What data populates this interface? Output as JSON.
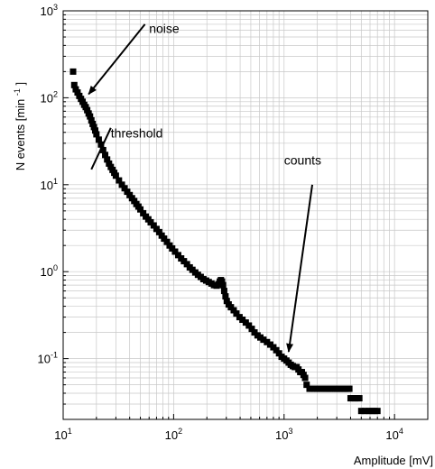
{
  "chart_data": {
    "type": "scatter",
    "x_scale": "log",
    "y_scale": "log",
    "xlim": [
      10,
      20000
    ],
    "ylim": [
      0.02,
      1000
    ],
    "grid": true,
    "xlabel": "Amplitude [mV]",
    "ylabel_main": "N events [min",
    "ylabel_sup": "-1",
    "ylabel_close": "]",
    "x_ticks": [
      {
        "value": 10,
        "base": "10",
        "exp": "1"
      },
      {
        "value": 100,
        "base": "10",
        "exp": "2"
      },
      {
        "value": 1000,
        "base": "10",
        "exp": "3"
      },
      {
        "value": 10000,
        "base": "10",
        "exp": "4"
      }
    ],
    "y_ticks": [
      {
        "value": 0.1,
        "base": "10",
        "exp": "-1"
      },
      {
        "value": 1,
        "base": "10",
        "exp": "0"
      },
      {
        "value": 10,
        "base": "10",
        "exp": "1"
      },
      {
        "value": 100,
        "base": "10",
        "exp": "2"
      },
      {
        "value": 1000,
        "base": "10",
        "exp": "3"
      }
    ],
    "annotations": [
      {
        "text": "noise",
        "text_x": 60,
        "text_y": 560,
        "from": [
          55,
          700
        ],
        "to": [
          17,
          110
        ]
      },
      {
        "text": "threshold",
        "text_x": 27,
        "text_y": 35,
        "from": [
          27,
          45
        ],
        "to": [
          18,
          15
        ]
      },
      {
        "text": "counts",
        "text_x": 1000,
        "text_y": 17,
        "from": [
          1800,
          10
        ],
        "to": [
          1100,
          0.12
        ]
      }
    ],
    "series": [
      {
        "points": [
          [
            12.3,
            200
          ],
          [
            12.6,
            140
          ],
          [
            13.0,
            125
          ],
          [
            13.5,
            115
          ],
          [
            14.0,
            105
          ],
          [
            14.5,
            97
          ],
          [
            15.0,
            90
          ],
          [
            15.5,
            83
          ],
          [
            16.0,
            78
          ],
          [
            16.5,
            72
          ],
          [
            17.0,
            66
          ],
          [
            17.5,
            61
          ],
          [
            18.0,
            55
          ],
          [
            18.5,
            50
          ],
          [
            19.0,
            46
          ],
          [
            19.5,
            42
          ],
          [
            20.0,
            38
          ],
          [
            21.0,
            33
          ],
          [
            22.0,
            29
          ],
          [
            23.0,
            25
          ],
          [
            24.0,
            22
          ],
          [
            25.0,
            19.5
          ],
          [
            26.0,
            17.5
          ],
          [
            27.0,
            16
          ],
          [
            28.0,
            14.8
          ],
          [
            29.0,
            13.7
          ],
          [
            30.0,
            12.7
          ],
          [
            32.0,
            11.2
          ],
          [
            34.0,
            10.0
          ],
          [
            36.0,
            9.1
          ],
          [
            38.0,
            8.3
          ],
          [
            40.0,
            7.6
          ],
          [
            42.0,
            7.0
          ],
          [
            44.0,
            6.5
          ],
          [
            46.0,
            6.0
          ],
          [
            48.0,
            5.6
          ],
          [
            50.0,
            5.2
          ],
          [
            53.0,
            4.7
          ],
          [
            56.0,
            4.3
          ],
          [
            59.0,
            4.0
          ],
          [
            62.0,
            3.7
          ],
          [
            66.0,
            3.4
          ],
          [
            70.0,
            3.1
          ],
          [
            74.0,
            2.85
          ],
          [
            78.0,
            2.6
          ],
          [
            82.0,
            2.4
          ],
          [
            87.0,
            2.2
          ],
          [
            92.0,
            2.0
          ],
          [
            97.0,
            1.85
          ],
          [
            103.0,
            1.7
          ],
          [
            110.0,
            1.55
          ],
          [
            117.0,
            1.42
          ],
          [
            124.0,
            1.32
          ],
          [
            132.0,
            1.22
          ],
          [
            140.0,
            1.12
          ],
          [
            148.0,
            1.05
          ],
          [
            157.0,
            0.98
          ],
          [
            166.0,
            0.92
          ],
          [
            176.0,
            0.87
          ],
          [
            186.0,
            0.82
          ],
          [
            197.0,
            0.79
          ],
          [
            208.0,
            0.76
          ],
          [
            220.0,
            0.73
          ],
          [
            232.0,
            0.7
          ],
          [
            245.0,
            0.69
          ],
          [
            255.0,
            0.72
          ],
          [
            262.0,
            0.77
          ],
          [
            268.0,
            0.8
          ],
          [
            274.0,
            0.77
          ],
          [
            280.0,
            0.7
          ],
          [
            287.0,
            0.6
          ],
          [
            295.0,
            0.52
          ],
          [
            303.0,
            0.46
          ],
          [
            315.0,
            0.42
          ],
          [
            330.0,
            0.39
          ],
          [
            350.0,
            0.36
          ],
          [
            370.0,
            0.33
          ],
          [
            395.0,
            0.3
          ],
          [
            420.0,
            0.28
          ],
          [
            450.0,
            0.26
          ],
          [
            480.0,
            0.24
          ],
          [
            510.0,
            0.22
          ],
          [
            540.0,
            0.2
          ],
          [
            575.0,
            0.185
          ],
          [
            610.0,
            0.175
          ],
          [
            650.0,
            0.165
          ],
          [
            700.0,
            0.155
          ],
          [
            750.0,
            0.145
          ],
          [
            800.0,
            0.135
          ],
          [
            850.0,
            0.125
          ],
          [
            900.0,
            0.115
          ],
          [
            950.0,
            0.105
          ],
          [
            1000.0,
            0.1
          ],
          [
            1050.0,
            0.095
          ],
          [
            1100.0,
            0.09
          ],
          [
            1150.0,
            0.085
          ],
          [
            1200.0,
            0.082
          ],
          [
            1250.0,
            0.08
          ],
          [
            1300.0,
            0.08
          ],
          [
            1350.0,
            0.075
          ],
          [
            1400.0,
            0.07
          ],
          [
            1450.0,
            0.07
          ],
          [
            1500.0,
            0.065
          ],
          [
            1550.0,
            0.06
          ],
          [
            1600.0,
            0.05
          ],
          [
            1700.0,
            0.045
          ],
          [
            1800.0,
            0.045
          ],
          [
            1900.0,
            0.045
          ],
          [
            2000.0,
            0.045
          ],
          [
            2100.0,
            0.045
          ],
          [
            2200.0,
            0.045
          ],
          [
            2300.0,
            0.045
          ],
          [
            2400.0,
            0.045
          ],
          [
            2500.0,
            0.045
          ],
          [
            2600.0,
            0.045
          ],
          [
            2700.0,
            0.045
          ],
          [
            2800.0,
            0.045
          ],
          [
            2900.0,
            0.045
          ],
          [
            3000.0,
            0.045
          ],
          [
            3100.0,
            0.045
          ],
          [
            3200.0,
            0.045
          ],
          [
            3300.0,
            0.045
          ],
          [
            3400.0,
            0.045
          ],
          [
            3500.0,
            0.045
          ],
          [
            3600.0,
            0.045
          ],
          [
            3700.0,
            0.045
          ],
          [
            3800.0,
            0.045
          ],
          [
            3900.0,
            0.045
          ],
          [
            4000.0,
            0.035
          ],
          [
            4200.0,
            0.035
          ],
          [
            4400.0,
            0.035
          ],
          [
            4600.0,
            0.035
          ],
          [
            4800.0,
            0.035
          ],
          [
            5000.0,
            0.025
          ],
          [
            5400.0,
            0.025
          ],
          [
            5800.0,
            0.025
          ],
          [
            6200.0,
            0.025
          ],
          [
            6600.0,
            0.025
          ],
          [
            7000.0,
            0.025
          ]
        ]
      }
    ]
  }
}
